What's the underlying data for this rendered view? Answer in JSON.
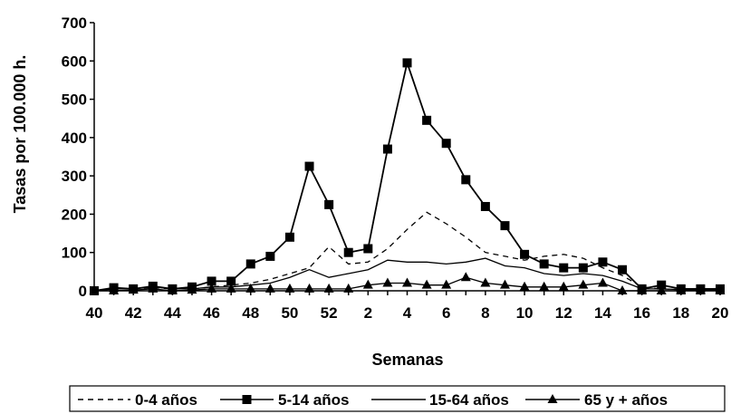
{
  "chart_data": {
    "type": "line",
    "title": "",
    "xlabel": "Semanas",
    "ylabel": "Tasas por 100.000 h.",
    "ylim": [
      0,
      700
    ],
    "yticks": [
      0,
      100,
      200,
      300,
      400,
      500,
      600,
      700
    ],
    "x": [
      "40",
      "41",
      "42",
      "43",
      "44",
      "45",
      "46",
      "47",
      "48",
      "49",
      "50",
      "51",
      "52",
      "1",
      "2",
      "3",
      "4",
      "5",
      "6",
      "7",
      "8",
      "9",
      "10",
      "11",
      "12",
      "13",
      "14",
      "15",
      "16",
      "17",
      "18",
      "19",
      "20"
    ],
    "xtick_labels": [
      "40",
      "42",
      "44",
      "46",
      "48",
      "50",
      "52",
      "2",
      "4",
      "6",
      "8",
      "10",
      "12",
      "14",
      "16",
      "18",
      "20"
    ],
    "legend_position": "bottom",
    "series": [
      {
        "name": "0-4 años",
        "style": "dashed",
        "marker": "none",
        "values": [
          0,
          5,
          5,
          8,
          5,
          5,
          10,
          15,
          20,
          30,
          45,
          60,
          115,
          70,
          75,
          110,
          160,
          205,
          175,
          140,
          100,
          90,
          80,
          90,
          95,
          85,
          60,
          40,
          10,
          5,
          3,
          2,
          2
        ]
      },
      {
        "name": "5-14 años",
        "style": "solid",
        "marker": "square",
        "values": [
          0,
          8,
          5,
          12,
          5,
          10,
          25,
          25,
          70,
          90,
          140,
          325,
          225,
          100,
          110,
          370,
          595,
          445,
          385,
          290,
          220,
          170,
          95,
          70,
          60,
          60,
          75,
          55,
          5,
          15,
          5,
          5,
          5
        ]
      },
      {
        "name": "15-64 años",
        "style": "solid",
        "marker": "none",
        "values": [
          0,
          5,
          5,
          10,
          5,
          5,
          10,
          10,
          15,
          20,
          35,
          55,
          35,
          45,
          55,
          80,
          75,
          75,
          70,
          75,
          85,
          65,
          60,
          45,
          40,
          45,
          40,
          25,
          5,
          5,
          3,
          2,
          2
        ]
      },
      {
        "name": "65 y + años",
        "style": "solid",
        "marker": "triangle",
        "values": [
          0,
          0,
          2,
          5,
          0,
          2,
          5,
          5,
          5,
          5,
          5,
          5,
          5,
          5,
          15,
          20,
          20,
          15,
          15,
          35,
          20,
          15,
          10,
          10,
          10,
          15,
          20,
          0,
          0,
          0,
          0,
          0,
          0
        ]
      }
    ]
  }
}
